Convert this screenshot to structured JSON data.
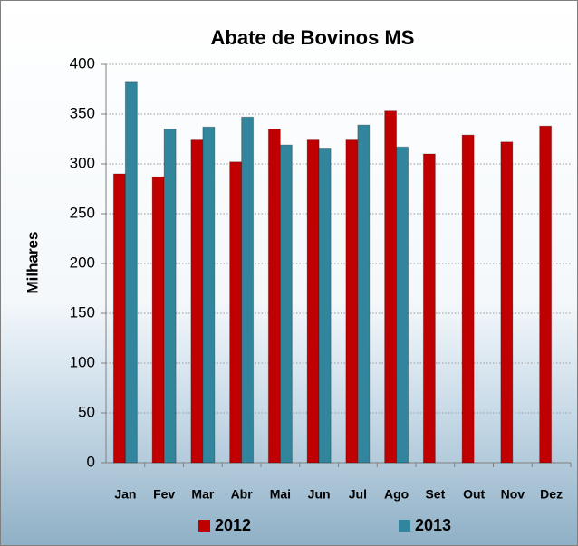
{
  "chart_data": {
    "type": "bar",
    "title": "Abate de Bovinos MS",
    "y_label": "Milhares",
    "categories": [
      "Jan",
      "Fev",
      "Mar",
      "Abr",
      "Mai",
      "Jun",
      "Jul",
      "Ago",
      "Set",
      "Out",
      "Nov",
      "Dez"
    ],
    "series": [
      {
        "name": "2012",
        "color": "#c00000",
        "values": [
          290,
          287,
          324,
          302,
          335,
          324,
          324,
          353,
          310,
          329,
          322,
          338
        ]
      },
      {
        "name": "2013",
        "color": "#31859c",
        "values": [
          382,
          335,
          337,
          347,
          319,
          315,
          339,
          317,
          null,
          null,
          null,
          null
        ]
      }
    ],
    "ylim": [
      0,
      400
    ],
    "yticks": [
      0,
      50,
      100,
      150,
      200,
      250,
      300,
      350,
      400
    ],
    "grid": true
  }
}
